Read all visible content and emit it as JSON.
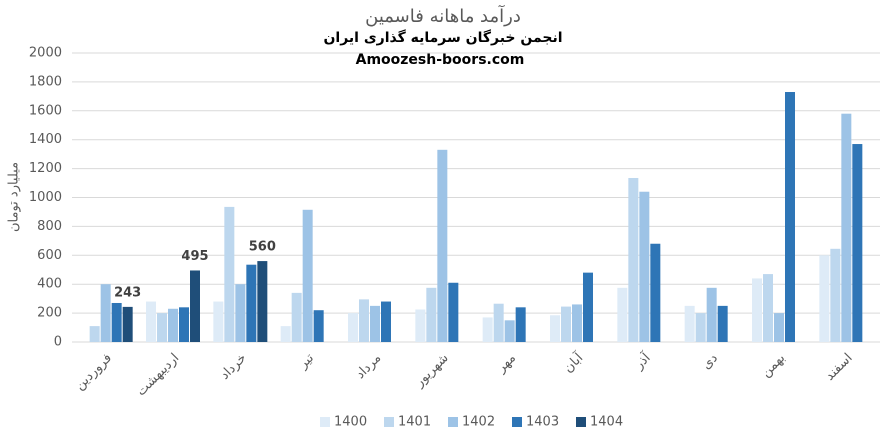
{
  "chart_data": {
    "type": "bar",
    "title": "درآمد ماهانه فاسمین",
    "subtitle": "انجمن خبرگان سرمایه گذاری ایران",
    "source": "Amoozesh-boors.com",
    "y_label": "میلیارد تومان",
    "categories": [
      "فروردین",
      "اردیبهشت",
      "خرداد",
      "تیر",
      "مرداد",
      "شهریور",
      "مهر",
      "آبان",
      "آذر",
      "دی",
      "بهمن",
      "اسفند"
    ],
    "series": [
      {
        "name": "1400",
        "color": "#deebf7",
        "values": [
          null,
          280,
          280,
          110,
          200,
          225,
          170,
          185,
          375,
          250,
          440,
          600
        ]
      },
      {
        "name": "1401",
        "color": "#bdd7ee",
        "values": [
          110,
          200,
          935,
          340,
          295,
          375,
          265,
          245,
          1135,
          200,
          470,
          645
        ]
      },
      {
        "name": "1402",
        "color": "#9dc3e6",
        "values": [
          400,
          230,
          400,
          915,
          250,
          1330,
          150,
          260,
          1040,
          375,
          200,
          1580
        ]
      },
      {
        "name": "1403",
        "color": "#2e75b6",
        "values": [
          270,
          240,
          535,
          220,
          280,
          410,
          240,
          480,
          680,
          250,
          1730,
          1370
        ]
      },
      {
        "name": "1404",
        "color": "#1f4e79",
        "values": [
          243,
          495,
          560,
          null,
          null,
          null,
          null,
          null,
          null,
          null,
          null,
          null
        ],
        "data_labels": true
      }
    ],
    "ylim": [
      0,
      2000
    ],
    "yticks": [
      0,
      200,
      400,
      600,
      800,
      1000,
      1200,
      1400,
      1600,
      1800,
      2000
    ],
    "grid": true,
    "legend": "bottom"
  }
}
